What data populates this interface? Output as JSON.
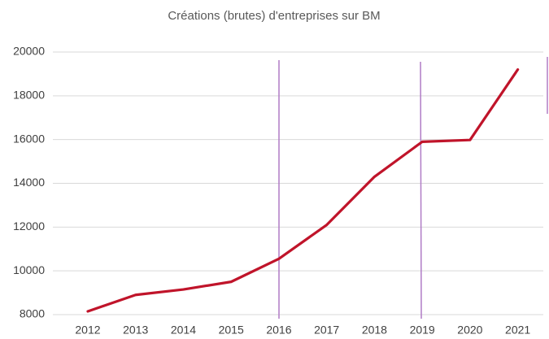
{
  "chart_data": {
    "type": "line",
    "title": "Créations (brutes) d'entreprises sur BM",
    "categories": [
      "2012",
      "2013",
      "2014",
      "2015",
      "2016",
      "2017",
      "2018",
      "2019",
      "2020",
      "2021"
    ],
    "series": [
      {
        "name": "BM",
        "color": "#c0142a",
        "values": [
          8150,
          8900,
          9150,
          9500,
          10550,
          12100,
          14300,
          15900,
          15980,
          19200
        ]
      }
    ],
    "ylim": [
      8000,
      20000
    ],
    "yticks": [
      8000,
      10000,
      12000,
      14000,
      16000,
      18000,
      20000
    ],
    "grid": true
  }
}
